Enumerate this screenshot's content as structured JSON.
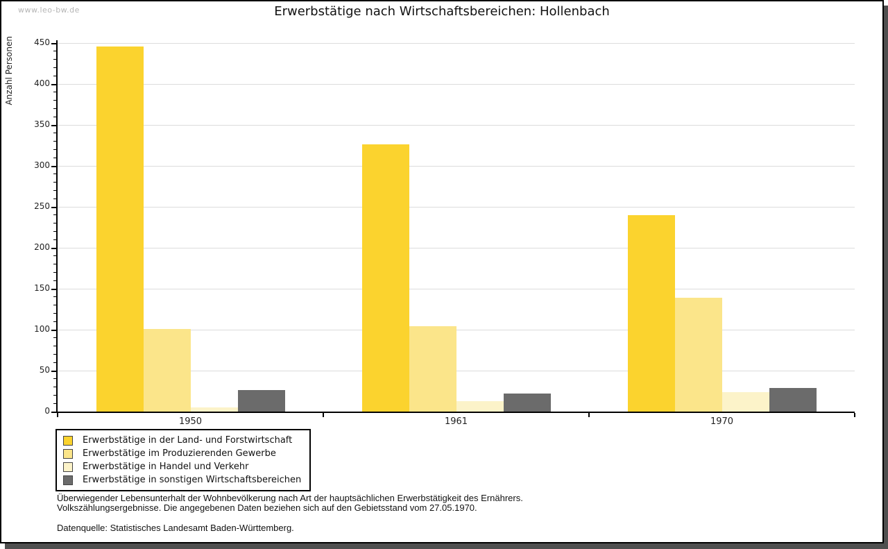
{
  "watermark": "www.leo-bw.de",
  "chart_data": {
    "type": "bar",
    "title": "Erwerbstätige nach Wirtschaftsbereichen: Hollenbach",
    "xlabel": "",
    "ylabel": "Anzahl Personen",
    "ylim": [
      0,
      450
    ],
    "yticks": [
      0,
      50,
      100,
      150,
      200,
      250,
      300,
      350,
      400,
      450
    ],
    "ytick_minor_step": 10,
    "grid": true,
    "legend_position": "bottom-left",
    "categories": [
      "1950",
      "1961",
      "1970"
    ],
    "series": [
      {
        "name": "Erwerbstätige in der Land- und Forstwirtschaft",
        "color": "#fbd32e",
        "values": [
          446,
          326,
          240
        ]
      },
      {
        "name": "Erwerbstätige im Produzierenden Gewerbe",
        "color": "#fbe58a",
        "values": [
          101,
          104,
          139
        ]
      },
      {
        "name": "Erwerbstätige in Handel und Verkehr",
        "color": "#fcf3c9",
        "values": [
          5,
          13,
          24
        ]
      },
      {
        "name": "Erwerbstätige in sonstigen Wirtschaftsbereichen",
        "color": "#6b6b6b",
        "values": [
          26,
          22,
          29
        ]
      }
    ]
  },
  "footnotes": {
    "lines": [
      "Überwiegender Lebensunterhalt der Wohnbevölkerung nach Art der hauptsächlichen Erwerbstätigkeit des Ernährers.",
      "Volkszählungsergebnisse. Die angegebenen Daten beziehen sich auf den Gebietsstand vom 27.05.1970."
    ]
  },
  "source": "Datenquelle: Statistisches Landesamt Baden-Württemberg."
}
